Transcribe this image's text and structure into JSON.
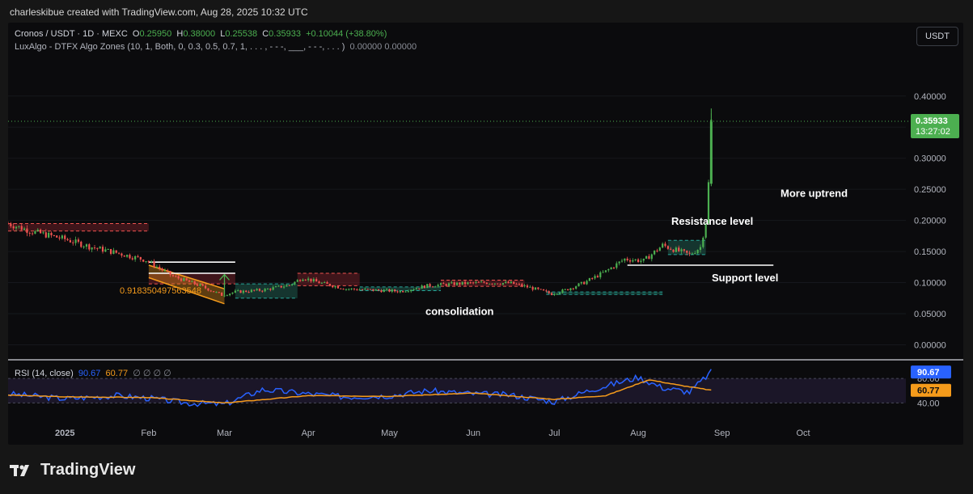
{
  "header": {
    "attribution": "charleskibue created with TradingView.com, Aug 28, 2025 10:32 UTC"
  },
  "legend": {
    "symbol": "Cronos / USDT · 1D · MEXC",
    "open_label": "O",
    "open": "0.25950",
    "high_label": "H",
    "high": "0.38000",
    "low_label": "L",
    "low": "0.25538",
    "close_label": "C",
    "close": "0.35933",
    "change": "+0.10044 (+38.80%)",
    "indicator": "LuxAlgo - DTFX Algo Zones (10, 1, Both, 0, 0.3, 0.5, 0.7, 1, . . . , - - -, ___, - - -, . . . )",
    "indicator_values": "0.00000  0.00000",
    "rsi": "RSI (14, close)",
    "rsi_value": "90.67",
    "rsi_ma_value": "60.77",
    "rsi_rest": "∅ ∅ ∅ ∅"
  },
  "currency_button": "USDT",
  "price_tag": {
    "price": "0.35933",
    "countdown": "13:27:02"
  },
  "rsi_tags": {
    "rsi": "90.67",
    "ma": "60.77",
    "level_80": "80.00",
    "level_40": "40.00"
  },
  "footer": {
    "brand": "TradingView"
  },
  "colors": {
    "up": "#4caf50",
    "down": "#ef5350",
    "rsi": "#2962ff",
    "rsi_ma": "#f59b1b",
    "zone_up": "#1f5a4c",
    "zone_down": "#6b1f26",
    "annotation": "#ffffff"
  },
  "chart_data": {
    "type": "candlestick",
    "price_axis": {
      "ticks": [
        0.0,
        0.05,
        0.1,
        0.15,
        0.2,
        0.25,
        0.3,
        0.35,
        0.4
      ],
      "tick_labels": [
        "0.00000",
        "0.05000",
        "0.10000",
        "0.15000",
        "0.20000",
        "0.25000",
        "0.30000",
        "0.35000",
        "0.40000"
      ],
      "range": [
        -0.015,
        0.44
      ]
    },
    "time_axis": {
      "labels": [
        "2025",
        "Feb",
        "Mar",
        "Apr",
        "May",
        "Jun",
        "Jul",
        "Aug",
        "Sep",
        "Oct"
      ]
    },
    "series": [
      {
        "name": "Cronos / USDT",
        "points": [
          [
            "2024-12-11",
            0.195
          ],
          [
            "2024-12-20",
            0.182
          ],
          [
            "2025-01-01",
            0.17
          ],
          [
            "2025-01-10",
            0.158
          ],
          [
            "2025-01-20",
            0.148
          ],
          [
            "2025-01-31",
            0.136
          ],
          [
            "2025-02-10",
            0.11
          ],
          [
            "2025-02-20",
            0.095
          ],
          [
            "2025-02-28",
            0.08
          ],
          [
            "2025-03-05",
            0.085
          ],
          [
            "2025-03-15",
            0.088
          ],
          [
            "2025-03-25",
            0.096
          ],
          [
            "2025-03-30",
            0.108
          ],
          [
            "2025-04-05",
            0.1
          ],
          [
            "2025-04-15",
            0.09
          ],
          [
            "2025-04-25",
            0.088
          ],
          [
            "2025-05-05",
            0.086
          ],
          [
            "2025-05-15",
            0.095
          ],
          [
            "2025-05-25",
            0.098
          ],
          [
            "2025-06-05",
            0.1
          ],
          [
            "2025-06-15",
            0.099
          ],
          [
            "2025-06-22",
            0.092
          ],
          [
            "2025-06-30",
            0.082
          ],
          [
            "2025-07-05",
            0.088
          ],
          [
            "2025-07-12",
            0.1
          ],
          [
            "2025-07-20",
            0.118
          ],
          [
            "2025-07-27",
            0.138
          ],
          [
            "2025-08-03",
            0.135
          ],
          [
            "2025-08-10",
            0.16
          ],
          [
            "2025-08-15",
            0.152
          ],
          [
            "2025-08-20",
            0.145
          ],
          [
            "2025-08-24",
            0.157
          ],
          [
            "2025-08-26",
            0.198
          ],
          [
            "2025-08-27",
            0.259
          ],
          [
            "2025-08-28",
            0.359
          ]
        ]
      },
      {
        "name": "RSI",
        "points": [
          [
            "2024-12-11",
            55
          ],
          [
            "2025-01-01",
            47
          ],
          [
            "2025-01-20",
            52
          ],
          [
            "2025-02-01",
            48
          ],
          [
            "2025-02-15",
            40
          ],
          [
            "2025-03-01",
            38
          ],
          [
            "2025-03-15",
            62
          ],
          [
            "2025-04-01",
            55
          ],
          [
            "2025-04-15",
            50
          ],
          [
            "2025-05-01",
            52
          ],
          [
            "2025-05-15",
            60
          ],
          [
            "2025-06-01",
            55
          ],
          [
            "2025-06-15",
            53
          ],
          [
            "2025-07-01",
            42
          ],
          [
            "2025-07-15",
            62
          ],
          [
            "2025-08-01",
            82
          ],
          [
            "2025-08-10",
            65
          ],
          [
            "2025-08-20",
            58
          ],
          [
            "2025-08-28",
            90.67
          ]
        ]
      },
      {
        "name": "RSI MA",
        "points": [
          [
            "2024-12-11",
            53
          ],
          [
            "2025-01-01",
            50
          ],
          [
            "2025-02-01",
            49
          ],
          [
            "2025-03-01",
            40
          ],
          [
            "2025-04-01",
            52
          ],
          [
            "2025-05-01",
            51
          ],
          [
            "2025-06-01",
            56
          ],
          [
            "2025-07-01",
            46
          ],
          [
            "2025-07-20",
            52
          ],
          [
            "2025-08-05",
            78
          ],
          [
            "2025-08-15",
            70
          ],
          [
            "2025-08-28",
            60.77
          ]
        ]
      }
    ],
    "zones": [
      {
        "kind": "supply",
        "start": "2024-12-11",
        "end": "2025-02-01",
        "top": 0.195,
        "bottom": 0.183
      },
      {
        "kind": "supply",
        "start": "2025-02-01",
        "end": "2025-03-05",
        "top": 0.115,
        "bottom": 0.098
      },
      {
        "kind": "demand",
        "start": "2025-03-05",
        "end": "2025-03-28",
        "top": 0.098,
        "bottom": 0.075
      },
      {
        "kind": "supply",
        "start": "2025-03-28",
        "end": "2025-04-20",
        "top": 0.115,
        "bottom": 0.095
      },
      {
        "kind": "demand",
        "start": "2025-04-20",
        "end": "2025-05-20",
        "top": 0.093,
        "bottom": 0.087
      },
      {
        "kind": "supply",
        "start": "2025-05-20",
        "end": "2025-06-20",
        "top": 0.104,
        "bottom": 0.094
      },
      {
        "kind": "demand",
        "start": "2025-06-28",
        "end": "2025-08-10",
        "top": 0.085,
        "bottom": 0.081
      },
      {
        "kind": "demand",
        "start": "2025-08-12",
        "end": "2025-08-26",
        "top": 0.168,
        "bottom": 0.145
      }
    ],
    "annotations": [
      {
        "text": "0.918350497563548",
        "color": "#f59b1b"
      },
      {
        "text": "consolidation",
        "color": "#ffffff"
      },
      {
        "text": "Resistance level",
        "color": "#ffffff"
      },
      {
        "text": "Support level",
        "color": "#ffffff"
      },
      {
        "text": "More uptrend",
        "color": "#ffffff"
      }
    ],
    "levels": [
      {
        "price": 0.133,
        "start": "2025-02-01",
        "end": "2025-03-05"
      },
      {
        "price": 0.115,
        "start": "2025-02-01",
        "end": "2025-03-05"
      },
      {
        "price": 0.128,
        "start": "2025-07-28",
        "end": "2025-09-20"
      }
    ],
    "rsi_axis": {
      "range": [
        30,
        100
      ],
      "ticks": [
        40,
        80
      ],
      "band": [
        40,
        80
      ]
    }
  }
}
